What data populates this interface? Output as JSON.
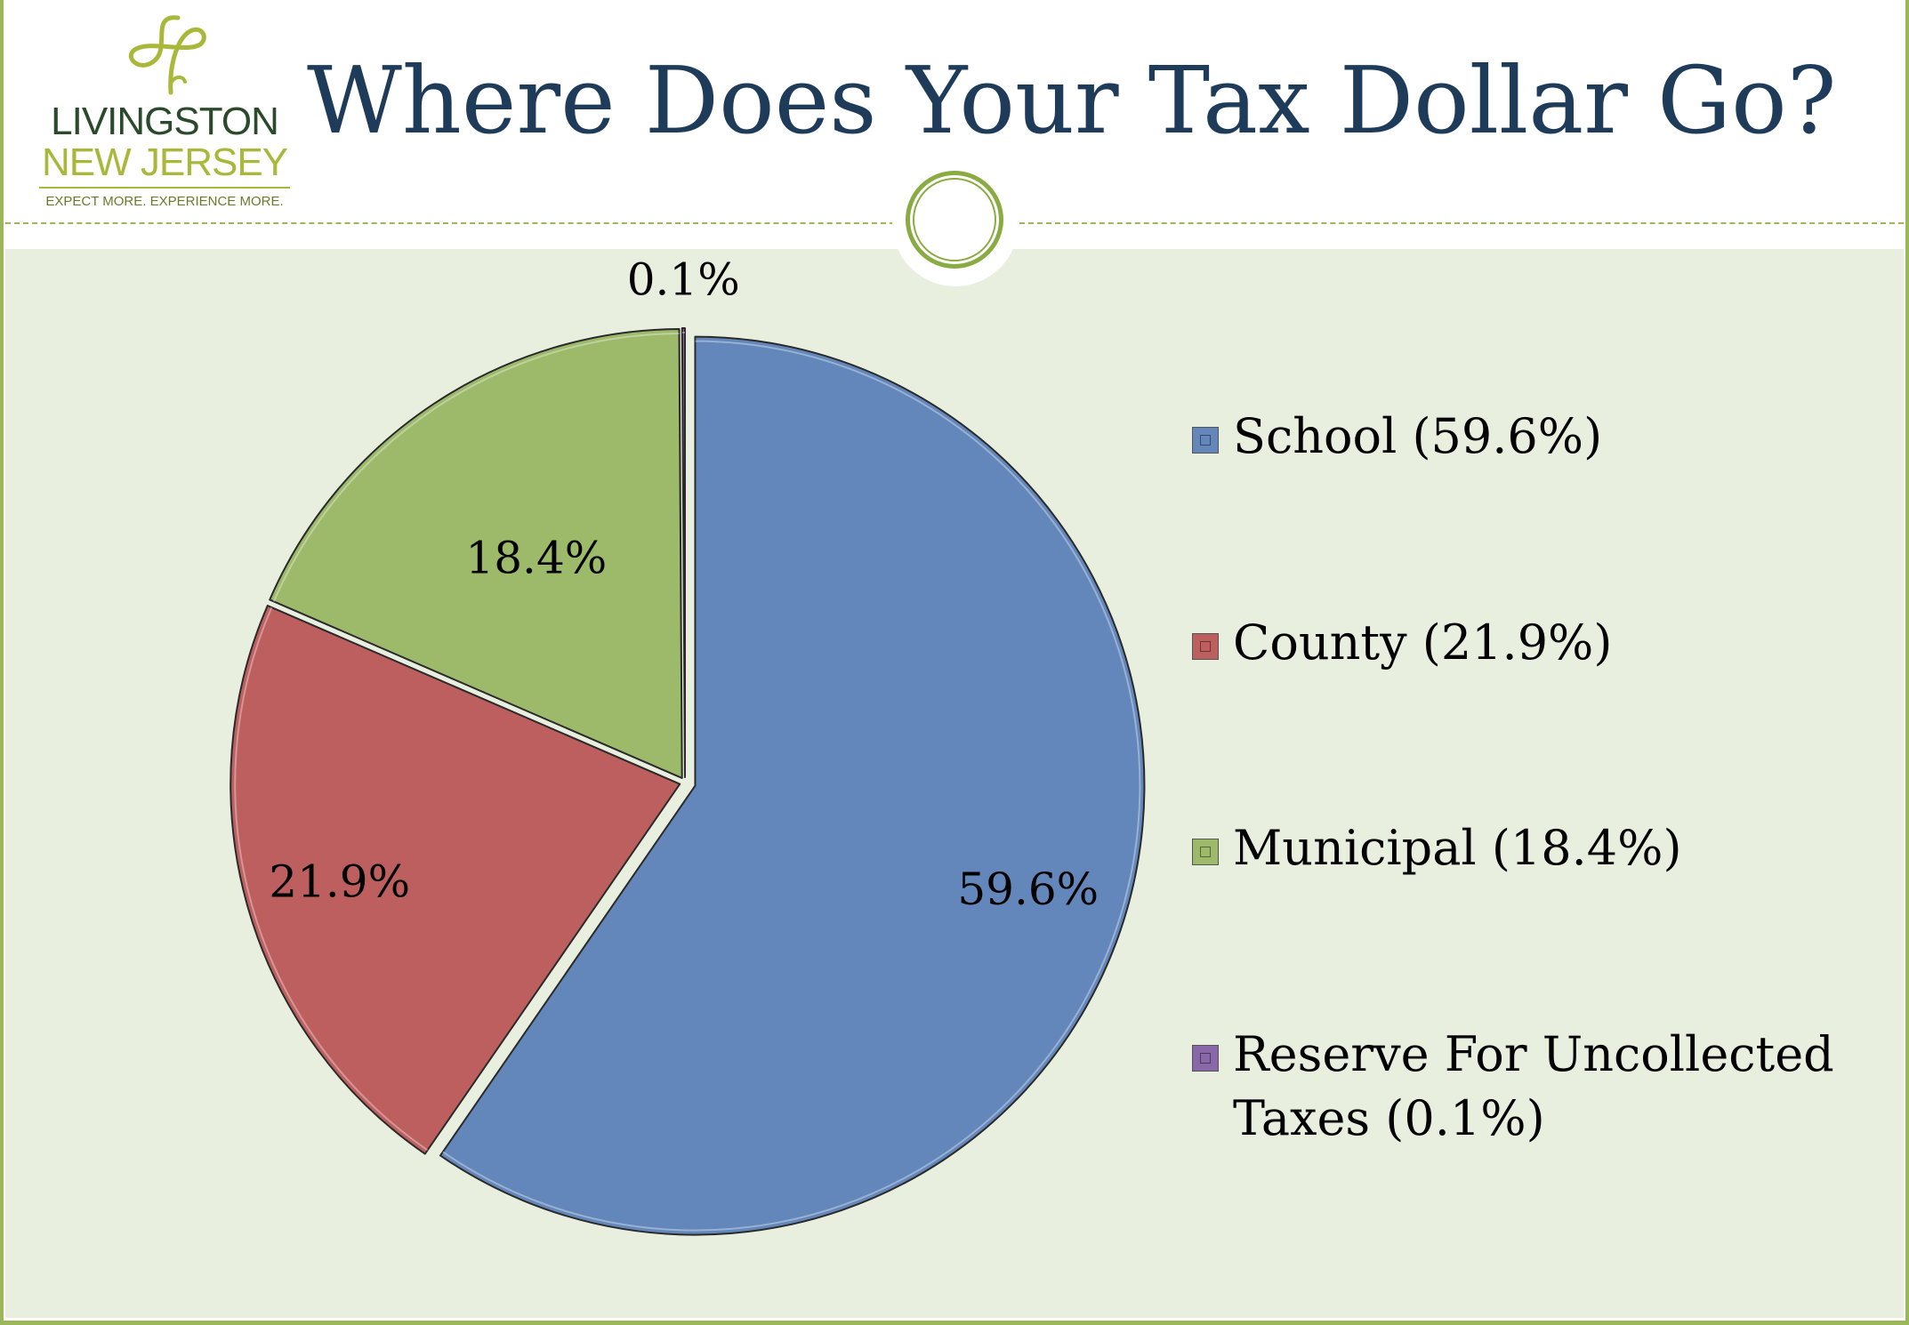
{
  "logo": {
    "line1": "LIVINGSTON",
    "line2": "NEW JERSEY",
    "tagline": "EXPECT MORE. EXPERIENCE MORE."
  },
  "title": "Where Does Your Tax Dollar Go?",
  "colors": {
    "school": "#6387ba",
    "county": "#be5f5f",
    "municipal": "#9db96a",
    "reserve": "#8a67a9",
    "title": "#1f3b5a",
    "frame": "#9bb75a",
    "background": "#e9efdf"
  },
  "chart_data": {
    "type": "pie",
    "title": "Where Does Your Tax Dollar Go?",
    "categories": [
      "School",
      "County",
      "Municipal",
      "Reserve For Uncollected Taxes"
    ],
    "values": [
      59.6,
      21.9,
      18.4,
      0.1
    ],
    "unit": "%",
    "data_labels": [
      "59.6%",
      "21.9%",
      "18.4%",
      "0.1%"
    ],
    "legend_entries": [
      "School (59.6%)",
      "County (21.9%)",
      "Municipal (18.4%)",
      "Reserve For Uncollected Taxes (0.1%)"
    ],
    "legend_position": "right"
  }
}
